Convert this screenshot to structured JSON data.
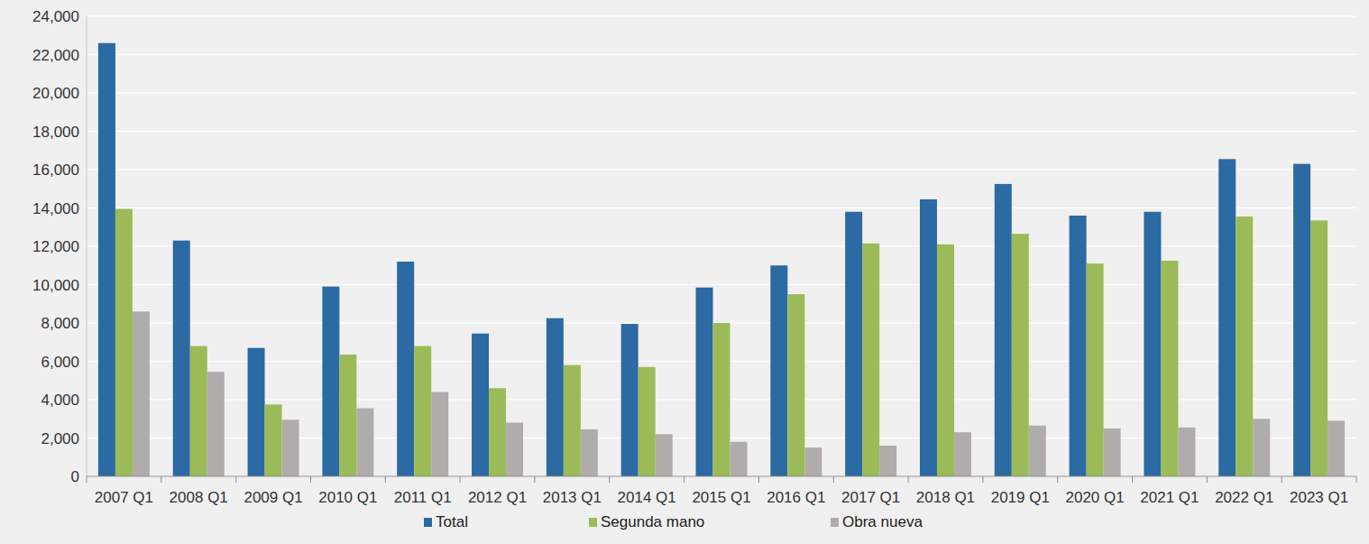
{
  "chart_data": {
    "type": "bar",
    "categories": [
      "2007 Q1",
      "2008 Q1",
      "2009 Q1",
      "2010 Q1",
      "2011 Q1",
      "2012 Q1",
      "2013 Q1",
      "2014 Q1",
      "2015 Q1",
      "2016 Q1",
      "2017 Q1",
      "2018 Q1",
      "2019 Q1",
      "2020 Q1",
      "2021 Q1",
      "2022 Q1",
      "2023 Q1"
    ],
    "series": [
      {
        "name": "Total",
        "color": "#2b6aa3",
        "values": [
          22600,
          12300,
          6700,
          9900,
          11200,
          7450,
          8250,
          7950,
          9850,
          11000,
          13800,
          14450,
          15250,
          13600,
          13800,
          16550,
          16300
        ]
      },
      {
        "name": "Segunda mano",
        "color": "#9bbb59",
        "values": [
          13950,
          6800,
          3750,
          6350,
          6800,
          4600,
          5800,
          5700,
          8000,
          9500,
          12150,
          12100,
          12650,
          11100,
          11250,
          13550,
          13350
        ]
      },
      {
        "name": "Obra nueva",
        "color": "#b1acac",
        "values": [
          8600,
          5450,
          2950,
          3550,
          4400,
          2800,
          2450,
          2200,
          1800,
          1500,
          1600,
          2300,
          2650,
          2500,
          2550,
          3000,
          2900
        ]
      }
    ],
    "ylim": [
      0,
      24000
    ],
    "yticks": [
      0,
      {
        "value": 2000,
        "label": "2,000"
      },
      {
        "value": 4000,
        "label": "4,000"
      },
      {
        "value": 6000,
        "label": "6,000"
      },
      {
        "value": 8000,
        "label": "8,000"
      },
      {
        "value": 10000,
        "label": "10,000"
      },
      {
        "value": 12000,
        "label": "12,000"
      },
      {
        "value": 14000,
        "label": "14,000"
      },
      {
        "value": 16000,
        "label": "16,000"
      },
      {
        "value": 18000,
        "label": "18,000"
      },
      {
        "value": 20000,
        "label": "20,000"
      },
      {
        "value": 22000,
        "label": "22,000"
      },
      {
        "value": 24000,
        "label": "24,000"
      }
    ],
    "grid": true,
    "legend": "bottom"
  }
}
